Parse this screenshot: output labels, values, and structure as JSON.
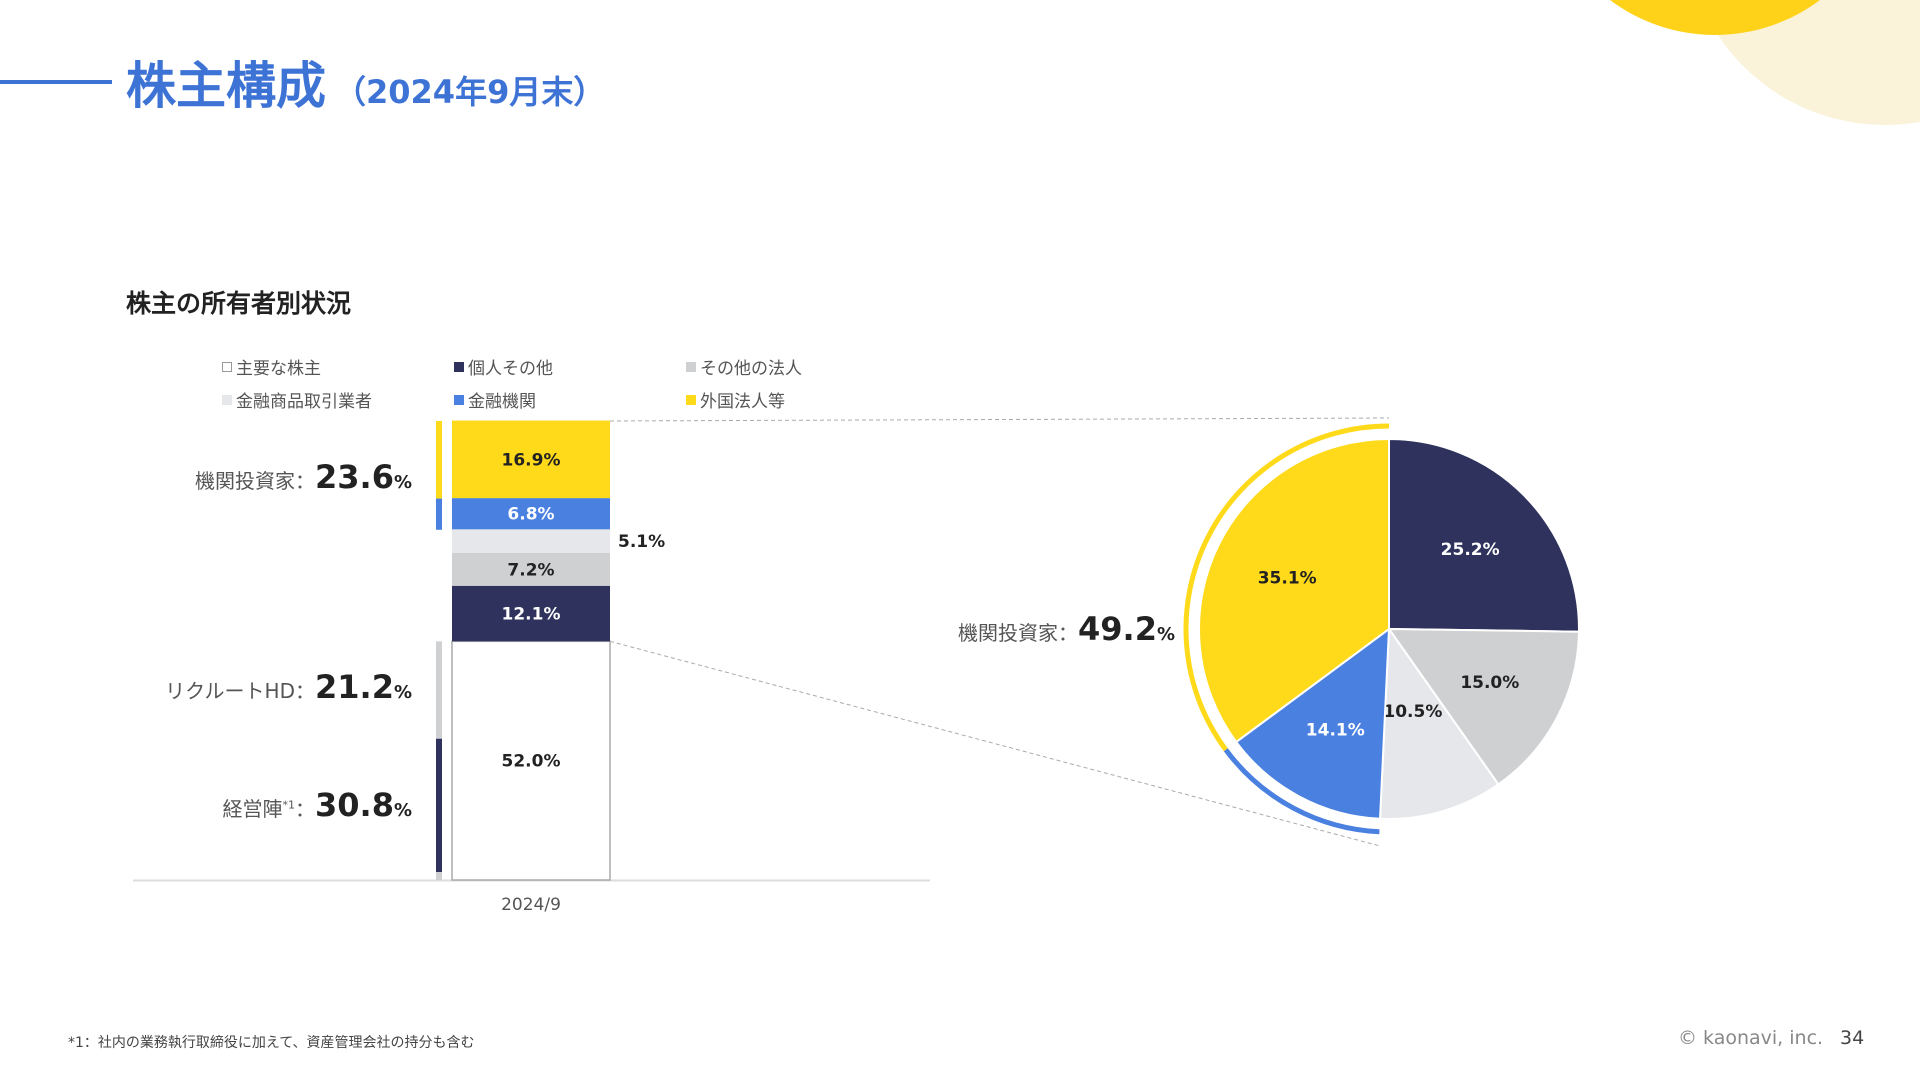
{
  "header": {
    "title": "株主構成",
    "subtitle": "（2024年9月末）"
  },
  "section_title": "株主の所有者別状況",
  "colors": {
    "accent": "#3E73D6",
    "navy": "#2E325C",
    "yellow": "#FFDA1A",
    "blue": "#4A80E0",
    "gray": "#CFD0D2",
    "light_gray": "#E6E7EA"
  },
  "legend": [
    {
      "label": "主要な株主",
      "color": "#FFFFFF"
    },
    {
      "label": "個人その他",
      "color": "#2E325C"
    },
    {
      "label": "その他の法人",
      "color": "#CFD0D2"
    },
    {
      "label": "金融商品取引業者",
      "color": "#E6E7EA"
    },
    {
      "label": "金融機関",
      "color": "#4A80E0"
    },
    {
      "label": "外国法人等",
      "color": "#FFDA1A"
    }
  ],
  "bar_groups": [
    {
      "label": "機関投資家",
      "sep": "：",
      "value": "23.6",
      "unit": "%",
      "sup": ""
    },
    {
      "label": "リクルートHD",
      "sep": "：",
      "value": "21.2",
      "unit": "%",
      "sup": ""
    },
    {
      "label": "経営陣",
      "sep": "：",
      "value": "30.8",
      "unit": "%",
      "sup": "*1"
    }
  ],
  "pie_group": {
    "label": "機関投資家",
    "sep": "：",
    "value": "49.2",
    "unit": "%"
  },
  "chart_data": [
    {
      "type": "bar",
      "stacked": true,
      "categories": [
        "2024/9"
      ],
      "ylim": [
        0,
        100
      ],
      "series": [
        {
          "name": "主要な株主",
          "values": [
            52.0
          ],
          "label": "52.0%",
          "color": "#FFFFFF"
        },
        {
          "name": "個人その他",
          "values": [
            12.1
          ],
          "label": "12.1%",
          "color": "#2E325C"
        },
        {
          "name": "その他の法人",
          "values": [
            7.2
          ],
          "label": "7.2%",
          "color": "#CFD0D2"
        },
        {
          "name": "金融商品取引業者",
          "values": [
            5.1
          ],
          "label": "5.1%",
          "color": "#E6E7EA"
        },
        {
          "name": "金融機関",
          "values": [
            6.8
          ],
          "label": "6.8%",
          "color": "#4A80E0"
        },
        {
          "name": "外国法人等",
          "values": [
            16.9
          ],
          "label": "16.9%",
          "color": "#FFDA1A"
        }
      ],
      "group_brackets": [
        {
          "name": "経営陣",
          "range": [
            0,
            30.8
          ],
          "color": "#2E325C"
        },
        {
          "name": "リクルートHD",
          "range": [
            30.8,
            52.0
          ],
          "color": "#CFD0D2"
        },
        {
          "name": "機関投資家",
          "range": [
            76.4,
            100
          ],
          "color": "#4A80E0"
        }
      ]
    },
    {
      "type": "pie",
      "slices": [
        {
          "name": "個人その他",
          "value": 25.2,
          "label": "25.2%",
          "color": "#2E325C"
        },
        {
          "name": "その他の法人",
          "value": 15.0,
          "label": "15.0%",
          "color": "#CFD0D2"
        },
        {
          "name": "金融商品取引業者",
          "value": 10.5,
          "label": "10.5%",
          "color": "#E6E7EA"
        },
        {
          "name": "金融機関",
          "value": 14.1,
          "label": "14.1%",
          "color": "#4A80E0"
        },
        {
          "name": "外国法人等",
          "value": 35.1,
          "label": "35.1%",
          "color": "#FFDA1A"
        }
      ],
      "highlight": {
        "name": "機関投資家",
        "value": 49.2,
        "slices": [
          "金融機関",
          "外国法人等"
        ]
      }
    }
  ],
  "footer": {
    "footnote": "*1：社内の業務執行取締役に加えて、資産管理会社の持分も含む",
    "copyright": "© kaonavi, inc.",
    "page": "34"
  }
}
